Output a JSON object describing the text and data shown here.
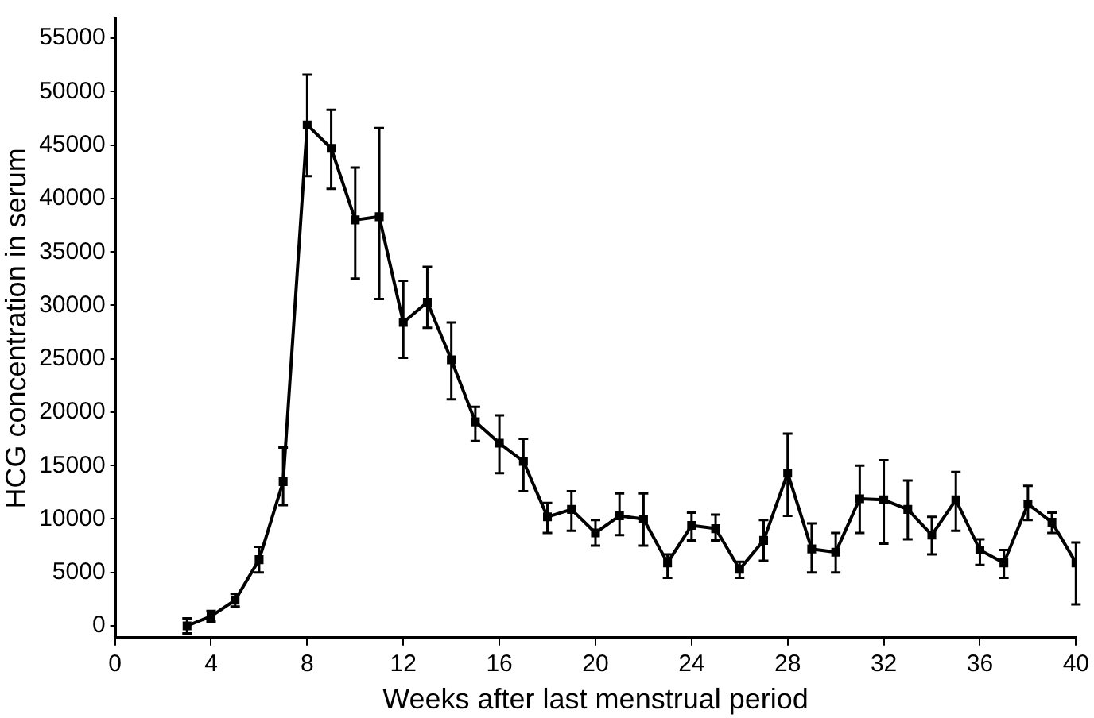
{
  "chart_data": {
    "type": "line",
    "xlabel": "Weeks after last menstrual period",
    "ylabel": "HCG concentration in serum",
    "x": [
      3,
      4,
      5,
      6,
      7,
      8,
      9,
      10,
      11,
      12,
      13,
      14,
      15,
      16,
      17,
      18,
      19,
      20,
      21,
      22,
      23,
      24,
      25,
      26,
      27,
      28,
      29,
      30,
      31,
      32,
      33,
      34,
      35,
      36,
      37,
      38,
      39,
      40
    ],
    "series": [
      {
        "color": "#000000",
        "values": [
          0,
          900,
          2400,
          6200,
          13500,
          46900,
          44700,
          38000,
          38300,
          28400,
          30300,
          24900,
          19100,
          17100,
          15400,
          10200,
          10900,
          8700,
          10300,
          10000,
          5900,
          9400,
          9100,
          5300,
          8000,
          14300,
          7200,
          6900,
          11900,
          11800,
          10900,
          8500,
          11800,
          7100,
          5900,
          11400,
          9700,
          5900
        ],
        "errors": [
          [
            -700,
            700
          ],
          [
            400,
            1400
          ],
          [
            1800,
            3000
          ],
          [
            5000,
            7400
          ],
          [
            11300,
            16700
          ],
          [
            42100,
            51600
          ],
          [
            40900,
            48300
          ],
          [
            32500,
            42900
          ],
          [
            30600,
            46600
          ],
          [
            25100,
            32300
          ],
          [
            27900,
            33600
          ],
          [
            21200,
            28400
          ],
          [
            17300,
            20500
          ],
          [
            14300,
            19700
          ],
          [
            12600,
            17500
          ],
          [
            8700,
            11500
          ],
          [
            8900,
            12600
          ],
          [
            7500,
            9900
          ],
          [
            8500,
            12400
          ],
          [
            7500,
            12400
          ],
          [
            4500,
            6700
          ],
          [
            8000,
            10600
          ],
          [
            8000,
            10400
          ],
          [
            4500,
            6000
          ],
          [
            6100,
            9900
          ],
          [
            10300,
            18000
          ],
          [
            5000,
            9600
          ],
          [
            5000,
            8700
          ],
          [
            8700,
            15000
          ],
          [
            7700,
            15500
          ],
          [
            8100,
            13600
          ],
          [
            6700,
            10200
          ],
          [
            8900,
            14400
          ],
          [
            5700,
            8100
          ],
          [
            4500,
            7100
          ],
          [
            9900,
            13100
          ],
          [
            8700,
            10600
          ],
          [
            2000,
            7800
          ]
        ]
      }
    ],
    "xlim": [
      0,
      40
    ],
    "xticks": [
      0,
      4,
      8,
      12,
      16,
      20,
      24,
      28,
      32,
      36,
      40
    ],
    "ylim": [
      -1100,
      56800
    ],
    "yticks": [
      0,
      5000,
      10000,
      15000,
      20000,
      25000,
      30000,
      35000,
      40000,
      45000,
      50000,
      55000
    ],
    "grid": false,
    "legend": false,
    "marker": "square",
    "line_style": "solid"
  }
}
